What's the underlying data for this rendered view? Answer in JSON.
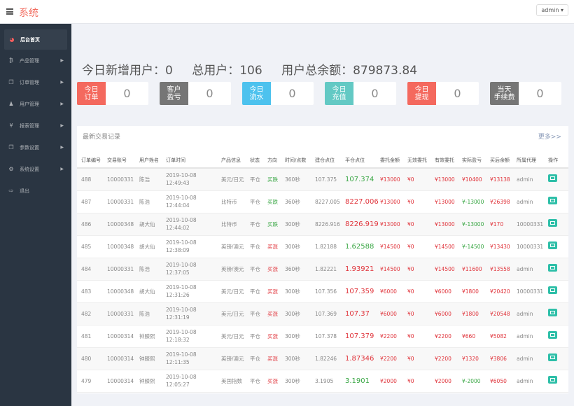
{
  "header": {
    "title": "系统",
    "user": "admin ▾"
  },
  "sidebar": {
    "items": [
      {
        "label": "后台首页",
        "icon": "dashboard-icon",
        "glyph": "◕",
        "active": true
      },
      {
        "label": "产品管理",
        "icon": "bitcoin-icon",
        "glyph": "₿"
      },
      {
        "label": "订单管理",
        "icon": "copy-icon",
        "glyph": "❐"
      },
      {
        "label": "用户管理",
        "icon": "user-icon",
        "glyph": "♟"
      },
      {
        "label": "报表管理",
        "icon": "yen-icon",
        "glyph": "¥"
      },
      {
        "label": "参数设置",
        "icon": "copy-icon",
        "glyph": "❐"
      },
      {
        "label": "系统设置",
        "icon": "cogs-icon",
        "glyph": "⚙"
      },
      {
        "label": "退出",
        "icon": "logout-icon",
        "glyph": "⇨"
      }
    ]
  },
  "stats": {
    "new_users": "今日新增用户：0",
    "total_users": "总用户：106",
    "total_balance": "用户总余额：879873.84"
  },
  "cards": [
    {
      "l1": "今日",
      "l2": "订单",
      "value": "0",
      "color": "#f4695e"
    },
    {
      "l1": "客户",
      "l2": "盈亏",
      "value": "0",
      "color": "#767676"
    },
    {
      "l1": "今日",
      "l2": "流水",
      "value": "0",
      "color": "#4dc2ee"
    },
    {
      "l1": "今日",
      "l2": "充值",
      "value": "0",
      "color": "#63c9c4"
    },
    {
      "l1": "今日",
      "l2": "提现",
      "value": "0",
      "color": "#f4695e"
    },
    {
      "l1": "当天",
      "l2": "手续费",
      "value": "0",
      "color": "#767676"
    }
  ],
  "panel": {
    "title": "最新交易记录",
    "more": "更多>>"
  },
  "columns": [
    "订单编号",
    "交易账号",
    "用户姓名",
    "订单时间",
    "产品信息",
    "状态",
    "方向",
    "时间/点数",
    "建仓点位",
    "平仓点位",
    "委托金额",
    "无效委托",
    "有效委托",
    "实际盈亏",
    "买后余额",
    "所属代理",
    "操作"
  ],
  "rows": [
    [
      "488",
      "10000331",
      "陈浩",
      "2019-10-08 12:49:43",
      "美元/日元",
      "平仓",
      "买跌",
      "360秒",
      "107.375",
      "107.374",
      "¥13000",
      "¥0",
      "¥13000",
      "¥10400",
      "¥13138",
      "admin"
    ],
    [
      "487",
      "10000331",
      "陈浩",
      "2019-10-08 12:44:04",
      "比特币",
      "平仓",
      "买跌",
      "360秒",
      "8227.005",
      "8227.006",
      "¥13000",
      "¥0",
      "¥13000",
      "¥-13000",
      "¥26398",
      "admin"
    ],
    [
      "486",
      "10000348",
      "胡大仙",
      "2019-10-08 12:44:02",
      "比特币",
      "平仓",
      "买跌",
      "300秒",
      "8226.916",
      "8226.919",
      "¥13000",
      "¥0",
      "¥13000",
      "¥-13000",
      "¥170",
      "10000331"
    ],
    [
      "485",
      "10000348",
      "胡大仙",
      "2019-10-08 12:38:09",
      "英镑/澳元",
      "平仓",
      "买涨",
      "300秒",
      "1.82188",
      "1.62588",
      "¥14500",
      "¥0",
      "¥14500",
      "¥-14500",
      "¥13430",
      "10000331"
    ],
    [
      "484",
      "10000331",
      "陈浩",
      "2019-10-08 12:37:05",
      "英镑/澳元",
      "平仓",
      "买涨",
      "360秒",
      "1.82221",
      "1.93921",
      "¥14500",
      "¥0",
      "¥14500",
      "¥11600",
      "¥13558",
      "admin"
    ],
    [
      "483",
      "10000348",
      "胡大仙",
      "2019-10-08 12:31:26",
      "美元/日元",
      "平仓",
      "买涨",
      "300秒",
      "107.356",
      "107.359",
      "¥6000",
      "¥0",
      "¥6000",
      "¥1800",
      "¥20420",
      "10000331"
    ],
    [
      "482",
      "10000331",
      "陈浩",
      "2019-10-08 12:31:19",
      "美元/日元",
      "平仓",
      "买涨",
      "300秒",
      "107.369",
      "107.37",
      "¥6000",
      "¥0",
      "¥6000",
      "¥1800",
      "¥20548",
      "admin"
    ],
    [
      "481",
      "10000314",
      "钟膝熙",
      "2019-10-08 12:18:32",
      "美元/日元",
      "平仓",
      "买涨",
      "300秒",
      "107.378",
      "107.379",
      "¥2200",
      "¥0",
      "¥2200",
      "¥660",
      "¥5082",
      "admin"
    ],
    [
      "480",
      "10000314",
      "钟膝熙",
      "2019-10-08 12:11:35",
      "英镑/澳元",
      "平仓",
      "买涨",
      "300秒",
      "1.82246",
      "1.87346",
      "¥2200",
      "¥0",
      "¥2200",
      "¥1320",
      "¥3806",
      "admin"
    ],
    [
      "479",
      "10000314",
      "钟膝熙",
      "2019-10-08 12:05:27",
      "美国指数",
      "平仓",
      "买涨",
      "300秒",
      "3.1905",
      "3.1901",
      "¥2000",
      "¥0",
      "¥2000",
      "¥-2000",
      "¥6050",
      "admin"
    ]
  ],
  "colors": {
    "up": "#e0343b",
    "down": "#3aa745",
    "action": "#2ebfa8"
  }
}
